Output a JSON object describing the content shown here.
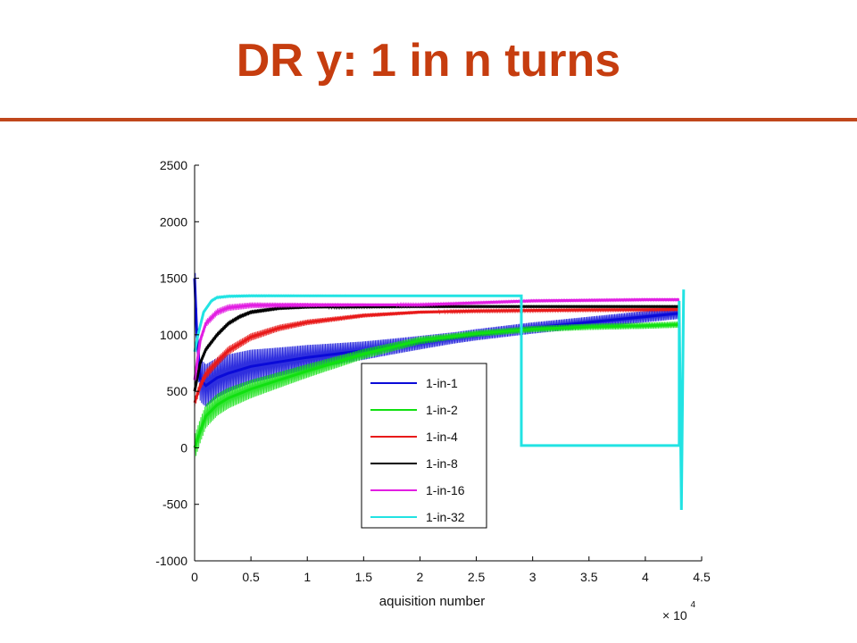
{
  "slide": {
    "title": "DR y: 1 in n turns"
  },
  "chart_data": {
    "type": "line",
    "title": "",
    "xlabel": "aquisition number",
    "ylabel": "",
    "x_multiplier": "× 10",
    "x_multiplier_exp": "4",
    "xlim": [
      0,
      4.5
    ],
    "ylim": [
      -1000,
      2500
    ],
    "x_ticks": [
      0,
      0.5,
      1,
      1.5,
      2,
      2.5,
      3,
      3.5,
      4,
      4.5
    ],
    "x_tick_labels": [
      "0",
      "0.5",
      "1",
      "1.5",
      "2",
      "2.5",
      "3",
      "3.5",
      "4",
      "4.5"
    ],
    "y_ticks": [
      -1000,
      -500,
      0,
      500,
      1000,
      1500,
      2000,
      2500
    ],
    "y_tick_labels": [
      "-1000",
      "-500",
      "0",
      "500",
      "1000",
      "1500",
      "2000",
      "2500"
    ],
    "grid": false,
    "legend_position": "center-right",
    "series": [
      {
        "name": "1-in-1",
        "color": "#0a0ad8",
        "x": [
          0,
          0.02,
          0.05,
          0.1,
          0.2,
          0.3,
          0.5,
          0.75,
          1,
          1.5,
          2,
          2.5,
          3,
          3.5,
          4,
          4.3
        ],
        "y": [
          1500,
          1000,
          600,
          550,
          620,
          660,
          720,
          760,
          800,
          860,
          930,
          1000,
          1060,
          1110,
          1160,
          1190
        ],
        "spread": 200
      },
      {
        "name": "1-in-2",
        "color": "#11e011",
        "x": [
          0,
          0.05,
          0.1,
          0.2,
          0.3,
          0.5,
          0.75,
          1,
          1.5,
          2,
          2.5,
          3,
          3.5,
          4,
          4.3
        ],
        "y": [
          0,
          150,
          280,
          380,
          440,
          520,
          600,
          680,
          830,
          950,
          1010,
          1050,
          1070,
          1080,
          1090
        ],
        "spread": 110
      },
      {
        "name": "1-in-4",
        "color": "#e81a1a",
        "x": [
          0,
          0.05,
          0.1,
          0.2,
          0.3,
          0.5,
          0.75,
          1,
          1.5,
          2,
          2.5,
          3,
          3.5,
          4,
          4.3
        ],
        "y": [
          400,
          550,
          650,
          760,
          860,
          980,
          1060,
          1110,
          1170,
          1200,
          1210,
          1215,
          1220,
          1222,
          1225
        ],
        "spread": 45
      },
      {
        "name": "1-in-8",
        "color": "#000000",
        "x": [
          0,
          0.05,
          0.1,
          0.2,
          0.3,
          0.4,
          0.5,
          0.75,
          1,
          1.5,
          2,
          3,
          4,
          4.3
        ],
        "y": [
          500,
          750,
          870,
          1000,
          1100,
          1160,
          1200,
          1235,
          1245,
          1248,
          1250,
          1250,
          1250,
          1250
        ],
        "spread": 25
      },
      {
        "name": "1-in-16",
        "color": "#e21ee2",
        "x": [
          0,
          0.05,
          0.1,
          0.2,
          0.3,
          0.5,
          0.75,
          1,
          1.5,
          2,
          3,
          4,
          4.3
        ],
        "y": [
          600,
          950,
          1100,
          1200,
          1240,
          1260,
          1262,
          1263,
          1264,
          1265,
          1300,
          1310,
          1310
        ],
        "spread": 35
      },
      {
        "name": "1-in-32",
        "color": "#22e3e3",
        "x": [
          0,
          0.03,
          0.08,
          0.15,
          0.2,
          0.3,
          0.5,
          1,
          2,
          2.9,
          2.9,
          3.5,
          4.3,
          4.3,
          4.32,
          4.34
        ],
        "y": [
          850,
          1000,
          1200,
          1300,
          1330,
          1340,
          1345,
          1345,
          1345,
          1345,
          20,
          20,
          20,
          1300,
          -550,
          1400
        ],
        "spread": 10
      }
    ]
  }
}
